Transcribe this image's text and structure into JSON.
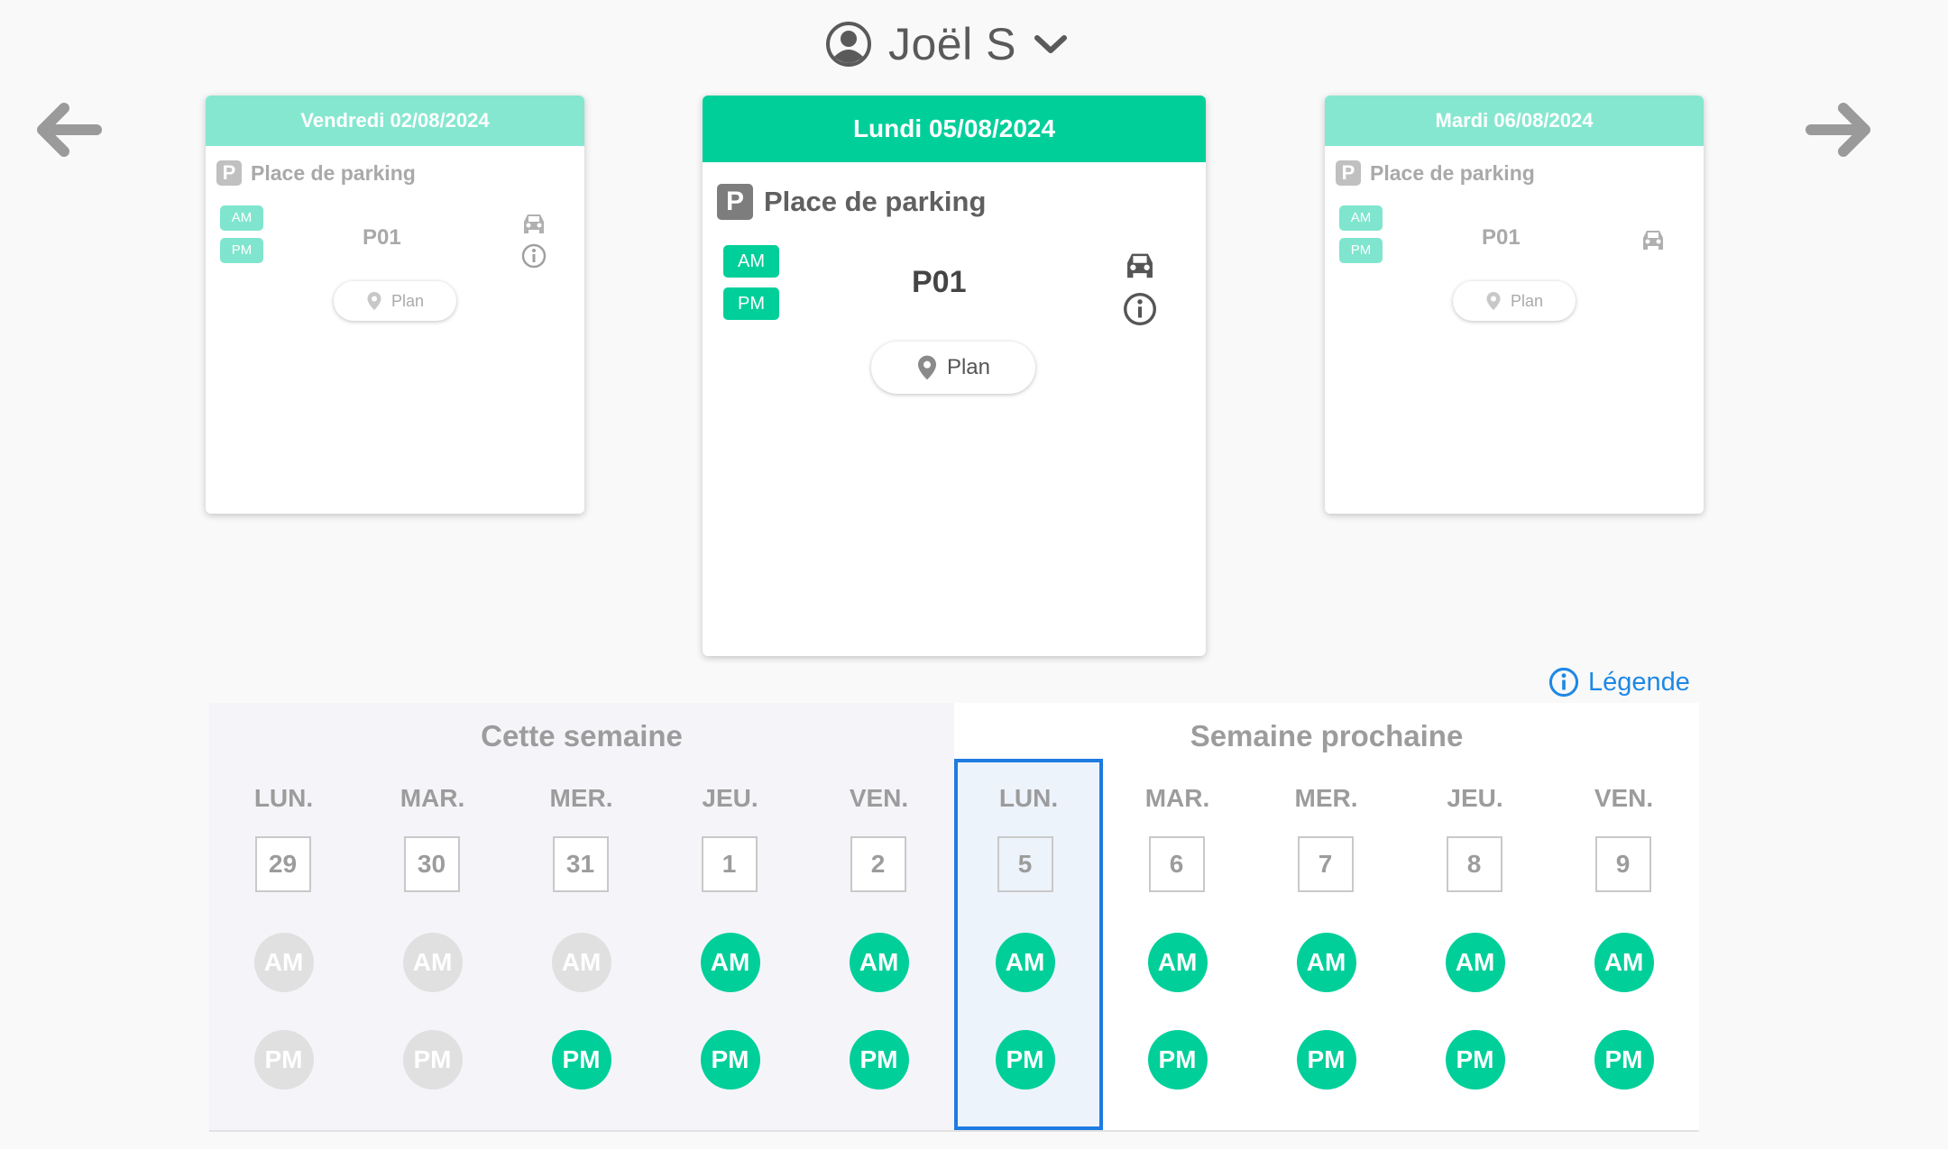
{
  "user": {
    "name": "Joël S",
    "icon": "user-circle-icon",
    "dropdown_icon": "chevron-down-icon"
  },
  "nav": {
    "prev_icon": "arrow-left-icon",
    "next_icon": "arrow-right-icon"
  },
  "colors": {
    "accent": "#00cf9a",
    "accent_light": "#86e7d0",
    "selected_border": "#1e7be0",
    "link": "#1e88e5",
    "inactive": "#e0e0e0"
  },
  "cards": {
    "prev": {
      "date": "Vendredi 02/08/2024",
      "resource": "Place de parking",
      "am": "AM",
      "pm": "PM",
      "slot": "P01",
      "plan": "Plan"
    },
    "current": {
      "date": "Lundi 05/08/2024",
      "resource": "Place de parking",
      "am": "AM",
      "pm": "PM",
      "slot": "P01",
      "plan": "Plan"
    },
    "next": {
      "date": "Mardi 06/08/2024",
      "resource": "Place de parking",
      "am": "AM",
      "pm": "PM",
      "slot": "P01",
      "plan": "Plan"
    }
  },
  "legend": {
    "label": "Légende",
    "icon": "info-icon"
  },
  "calendar": {
    "this_week": {
      "title": "Cette semaine",
      "days": [
        {
          "name": "LUN.",
          "num": "29",
          "am": "AM",
          "pm": "PM",
          "am_on": false,
          "pm_on": false
        },
        {
          "name": "MAR.",
          "num": "30",
          "am": "AM",
          "pm": "PM",
          "am_on": false,
          "pm_on": false
        },
        {
          "name": "MER.",
          "num": "31",
          "am": "AM",
          "pm": "PM",
          "am_on": false,
          "pm_on": true
        },
        {
          "name": "JEU.",
          "num": "1",
          "am": "AM",
          "pm": "PM",
          "am_on": true,
          "pm_on": true
        },
        {
          "name": "VEN.",
          "num": "2",
          "am": "AM",
          "pm": "PM",
          "am_on": true,
          "pm_on": true
        }
      ]
    },
    "next_week": {
      "title": "Semaine prochaine",
      "selected_index": 0,
      "days": [
        {
          "name": "LUN.",
          "num": "5",
          "am": "AM",
          "pm": "PM",
          "am_on": true,
          "pm_on": true
        },
        {
          "name": "MAR.",
          "num": "6",
          "am": "AM",
          "pm": "PM",
          "am_on": true,
          "pm_on": true
        },
        {
          "name": "MER.",
          "num": "7",
          "am": "AM",
          "pm": "PM",
          "am_on": true,
          "pm_on": true
        },
        {
          "name": "JEU.",
          "num": "8",
          "am": "AM",
          "pm": "PM",
          "am_on": true,
          "pm_on": true
        },
        {
          "name": "VEN.",
          "num": "9",
          "am": "AM",
          "pm": "PM",
          "am_on": true,
          "pm_on": true
        }
      ]
    }
  }
}
